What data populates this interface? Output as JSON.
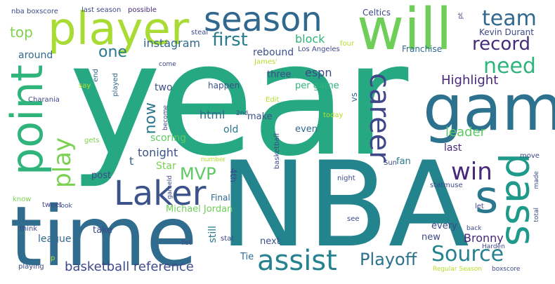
{
  "words": {
    "year": "year",
    "nba": "NBA",
    "time": "time",
    "game": "game",
    "player": "player",
    "will": "will",
    "season": "season",
    "point": "point",
    "laker": "Laker",
    "pass": "pass",
    "assist": "assist",
    "s": "s",
    "career": "career",
    "source": "Source",
    "playoff": "Playoff",
    "play": "play",
    "win": "win",
    "team": "team",
    "need": "need",
    "record": "record",
    "first": "first",
    "top": "top",
    "one": "one",
    "highlight": "Highlight",
    "mvp": "MVP",
    "basketball_reference": "basketball reference",
    "now": "now",
    "leader": "leader",
    "bronny": "Bronny",
    "instagram": "instagram",
    "block": "block",
    "rebound": "rebound",
    "espn": "espn",
    "html": "html",
    "tonight": "tonight",
    "star": "Star",
    "scoring": "scoring",
    "michael_jordan": "Michael Jordan",
    "kevin_durant": "Kevin Durant",
    "franchise": "Franchise",
    "old": "old",
    "last": "last",
    "per_game": "per game",
    "around": "around",
    "two": "two",
    "even": "even",
    "league": "league",
    "post": "post",
    "take": "take",
    "still": "still",
    "make": "make",
    "next": "next",
    "every": "every",
    "new": "new",
    "tie": "Tie",
    "three": "three",
    "vs": "vs",
    "celtics": "Celtics",
    "fan": "fan",
    "final": "Final",
    "happen": "happen",
    "fourth": "4th",
    "t": "t",
    "nba_boxscore": "nba boxscore",
    "last_season": "last season",
    "possible": "possible",
    "steal": "steal",
    "los_angeles": "Los Angeles",
    "james": "James'",
    "charania": "Charania",
    "say": "say",
    "end": "end",
    "played": "played",
    "come": "come",
    "edit": "Edit",
    "second": "2nd",
    "become": "become",
    "gets": "gets",
    "know": "know",
    "tweet": "tweet",
    "look": "look",
    "think": "think",
    "playing": "playing",
    "p": "p",
    "list": "list",
    "stat": "stat",
    "gameid": "gameId",
    "number": "number",
    "basketball": "basketball",
    "night": "night",
    "today": "today",
    "statmuse": "statmuse",
    "sun": "Sun",
    "made": "made",
    "move": "move",
    "let": "let",
    "total": "total",
    "back": "back",
    "harden": "Harden",
    "see": "see",
    "regular_season": "Regular Season",
    "boxscore": "boxscore",
    "four": "four",
    "pt": "pt"
  },
  "colors": {
    "purple_dark": "#440154",
    "indigo": "#482878",
    "blue_violet": "#3e4989",
    "slate_blue": "#31688e",
    "teal_blue": "#26828e",
    "teal": "#1f9e89",
    "sea_green": "#35b779",
    "green": "#6ece58",
    "lime": "#b5de2b",
    "yellow": "#fde725"
  }
}
